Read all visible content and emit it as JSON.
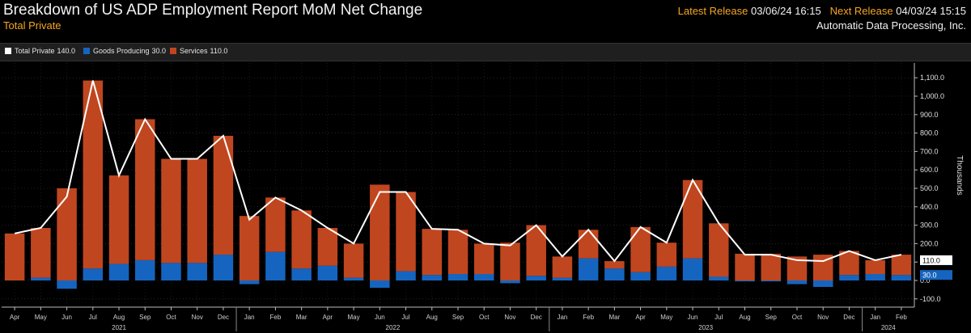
{
  "header": {
    "title": "Breakdown of US ADP Employment Report MoM Net Change",
    "subtitle": "Total Private",
    "latest_label": "Latest Release",
    "latest_value": "03/06/24 16:15",
    "next_label": "Next Release",
    "next_value": "04/03/24 15:15",
    "source": "Automatic Data Processing, Inc."
  },
  "legend": [
    {
      "name": "Total Private",
      "value": "140.0",
      "color": "#ffffff"
    },
    {
      "name": "Goods Producing",
      "value": "30.0",
      "color": "#1565c0"
    },
    {
      "name": "Services",
      "value": "110.0",
      "color": "#c0461f"
    }
  ],
  "chart_data": {
    "type": "bar",
    "stacked": true,
    "categories": [
      "Apr",
      "May",
      "Jun",
      "Jul",
      "Aug",
      "Sep",
      "Oct",
      "Nov",
      "Dec",
      "Jan",
      "Feb",
      "Mar",
      "Apr",
      "May",
      "Jun",
      "Jul",
      "Aug",
      "Sep",
      "Oct",
      "Nov",
      "Dec",
      "Jan",
      "Feb",
      "Mar",
      "Apr",
      "May",
      "Jun",
      "Jul",
      "Aug",
      "Sep",
      "Oct",
      "Nov",
      "Dec",
      "Jan",
      "Feb"
    ],
    "year_labels": [
      {
        "label": "2021",
        "start": 0,
        "end": 8
      },
      {
        "label": "2022",
        "start": 9,
        "end": 20
      },
      {
        "label": "2023",
        "start": 21,
        "end": 32
      },
      {
        "label": "2024",
        "start": 33,
        "end": 34
      }
    ],
    "series": [
      {
        "name": "Goods Producing",
        "color": "#1565c0",
        "values": [
          0,
          15,
          -45,
          65,
          90,
          110,
          95,
          95,
          140,
          -20,
          155,
          65,
          80,
          15,
          -40,
          50,
          30,
          35,
          35,
          -15,
          25,
          15,
          120,
          65,
          45,
          75,
          120,
          20,
          -5,
          -5,
          -20,
          -35,
          30,
          35,
          30
        ]
      },
      {
        "name": "Services",
        "color": "#c0461f",
        "values": [
          255,
          270,
          500,
          1020,
          480,
          765,
          565,
          565,
          645,
          350,
          295,
          315,
          205,
          185,
          520,
          430,
          250,
          240,
          165,
          205,
          275,
          115,
          155,
          40,
          245,
          130,
          425,
          290,
          145,
          145,
          130,
          140,
          130,
          75,
          110
        ]
      },
      {
        "name": "Total Private",
        "color": "#ffffff",
        "type": "line",
        "values": [
          255,
          285,
          455,
          1085,
          570,
          875,
          660,
          660,
          785,
          330,
          450,
          380,
          285,
          200,
          480,
          480,
          280,
          275,
          200,
          190,
          300,
          130,
          275,
          105,
          290,
          205,
          545,
          310,
          140,
          140,
          110,
          105,
          160,
          110,
          140
        ]
      }
    ],
    "ylabel": "Thousands",
    "ylim": [
      -150,
      1150
    ],
    "yticks": [
      -100,
      0,
      100,
      200,
      300,
      400,
      500,
      600,
      700,
      800,
      900,
      1000,
      1100
    ],
    "ytick_labels": [
      "-100.0",
      "0.0",
      "100.0",
      "200.0",
      "300.0",
      "400.0",
      "500.0",
      "600.0",
      "700.0",
      "800.0",
      "900.0",
      "1,000.0",
      "1,100.0"
    ],
    "grid": true,
    "end_labels": [
      {
        "text": "110.0",
        "value": 110,
        "bg": "#ffffff",
        "fg": "#000000"
      },
      {
        "text": "30.0",
        "value": 30,
        "bg": "#1565c0",
        "fg": "#ffffff"
      }
    ]
  }
}
